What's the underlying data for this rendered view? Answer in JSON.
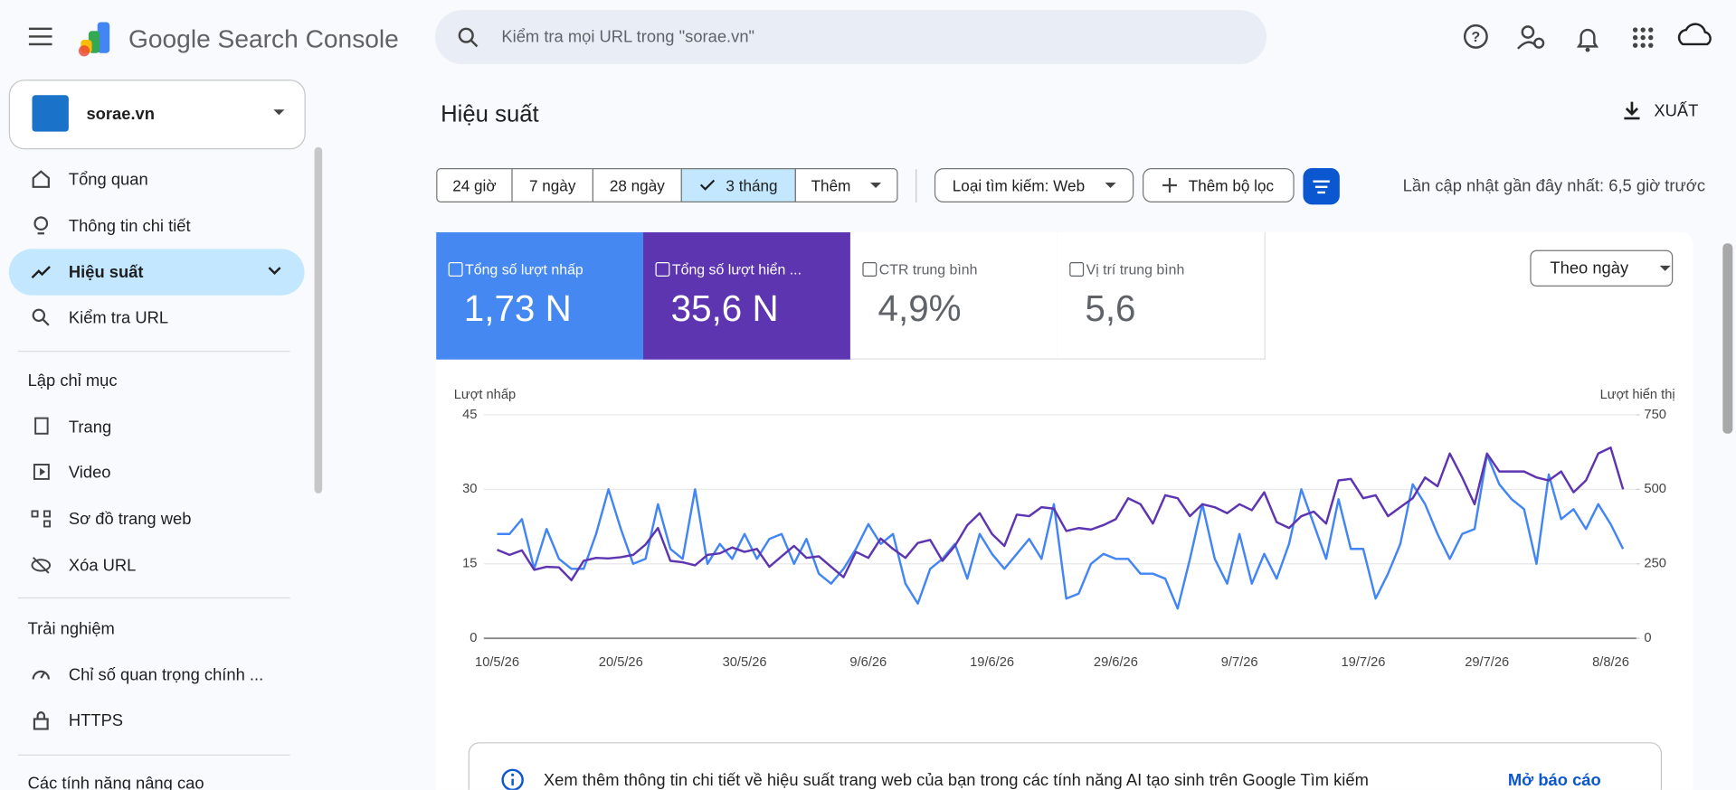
{
  "header": {
    "product": "Google Search Console",
    "search_placeholder": "Kiểm tra mọi URL trong \"sorae.vn\""
  },
  "sidebar": {
    "property": "sorae.vn",
    "nav": [
      "Tổng quan",
      "Thông tin chi tiết",
      "Hiệu suất",
      "Kiểm tra URL"
    ],
    "sections": [
      {
        "title": "Lập chỉ mục",
        "items": [
          "Trang",
          "Video",
          "Sơ đồ trang web",
          "Xóa URL"
        ]
      },
      {
        "title": "Trải nghiệm",
        "items": [
          "Chỉ số quan trọng chính ...",
          "HTTPS"
        ]
      },
      {
        "title": "Các tính năng nâng cao",
        "items": []
      }
    ]
  },
  "main": {
    "title": "Hiệu suất",
    "export": "XUẤT",
    "date_ranges": [
      "24 giờ",
      "7 ngày",
      "28 ngày",
      "3 tháng"
    ],
    "more": "Thêm",
    "search_type": "Loại tìm kiếm: Web",
    "add_filter": "Thêm bộ lọc",
    "last_updated": "Lần cập nhật gần đây nhất: 6,5 giờ trước",
    "metrics": [
      {
        "label": "Tổng số lượt nhấp",
        "value": "1,73 N"
      },
      {
        "label": "Tổng số lượt hiển ...",
        "value": "35,6 N"
      },
      {
        "label": "CTR trung bình",
        "value": "4,9%"
      },
      {
        "label": "Vị trí trung bình",
        "value": "5,6"
      }
    ],
    "granularity": "Theo ngày",
    "banner": "Xem thêm thông tin chi tiết về hiệu suất trang web của bạn trong các tính năng AI tạo sinh trên Google Tìm kiếm",
    "banner_link": "Mở báo cáo"
  },
  "chart_data": {
    "type": "line",
    "y_label": "Lượt nhấp",
    "y2_label": "Lượt hiển thị",
    "categories": [
      "10/5/26",
      null,
      null,
      null,
      null,
      null,
      null,
      null,
      null,
      null,
      "20/5/26",
      null,
      null,
      null,
      null,
      null,
      null,
      null,
      null,
      null,
      "30/5/26",
      null,
      null,
      null,
      null,
      null,
      null,
      null,
      null,
      null,
      "9/6/26",
      null,
      null,
      null,
      null,
      null,
      null,
      null,
      null,
      null,
      "19/6/26",
      null,
      null,
      null,
      null,
      null,
      null,
      null,
      null,
      null,
      "29/6/26",
      null,
      null,
      null,
      null,
      null,
      null,
      null,
      null,
      null,
      "9/7/26",
      null,
      null,
      null,
      null,
      null,
      null,
      null,
      null,
      null,
      "19/7/26",
      null,
      null,
      null,
      null,
      null,
      null,
      null,
      null,
      null,
      "29/7/26",
      null,
      null,
      null,
      null,
      null,
      null,
      null,
      null,
      null,
      "8/8/26",
      null
    ],
    "ylim": [
      0,
      45
    ],
    "yticks": [
      0,
      15,
      30,
      45
    ],
    "y2lim": [
      0,
      750
    ],
    "y2ticks": [
      0,
      250,
      500,
      750
    ],
    "grid": true,
    "series": [
      {
        "name": "Lượt nhấp",
        "color": "#4285f4",
        "values": [
          21,
          21,
          24,
          14,
          22,
          16,
          14,
          14,
          21,
          30,
          22,
          15,
          16,
          27,
          18,
          16,
          30,
          15,
          19,
          16,
          21,
          16,
          20,
          21,
          15,
          20,
          13,
          11,
          14,
          18,
          23,
          19,
          21,
          11,
          7,
          14,
          16,
          19,
          12,
          21,
          17,
          14,
          17,
          20,
          16,
          27,
          8,
          9,
          15,
          17,
          16,
          16,
          13,
          13,
          12,
          6,
          16,
          27,
          16,
          11,
          21,
          11,
          17,
          12,
          19,
          30,
          23,
          16,
          28,
          18,
          18,
          8,
          13,
          19,
          31,
          27,
          21,
          16,
          21,
          22,
          37,
          31,
          28,
          26,
          15,
          33,
          24,
          26,
          22,
          27,
          23,
          18
        ]
      },
      {
        "name": "Lượt hiển thị",
        "color": "#5e35b1",
        "axis": "y2",
        "values": [
          297,
          280,
          295,
          230,
          240,
          238,
          195,
          260,
          270,
          268,
          272,
          280,
          315,
          370,
          260,
          255,
          245,
          280,
          285,
          305,
          290,
          300,
          240,
          275,
          310,
          270,
          275,
          240,
          205,
          290,
          270,
          335,
          300,
          270,
          320,
          330,
          260,
          310,
          380,
          420,
          350,
          310,
          415,
          410,
          440,
          435,
          360,
          370,
          365,
          380,
          400,
          470,
          450,
          385,
          480,
          470,
          410,
          450,
          440,
          420,
          450,
          430,
          490,
          390,
          370,
          410,
          425,
          385,
          530,
          535,
          470,
          480,
          410,
          440,
          470,
          540,
          510,
          620,
          540,
          450,
          620,
          560,
          560,
          560,
          540,
          530,
          560,
          490,
          530,
          620,
          640,
          500
        ]
      }
    ]
  }
}
